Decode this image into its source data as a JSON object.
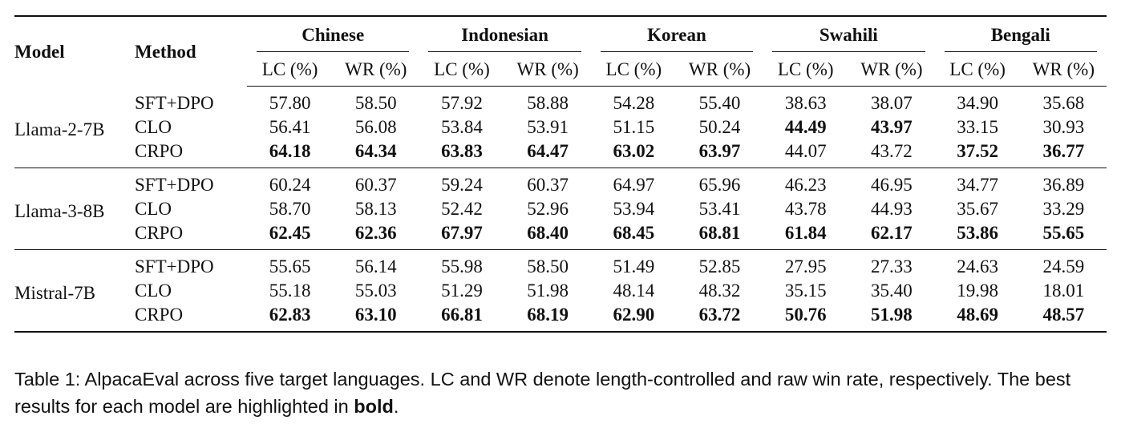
{
  "table": {
    "headers": {
      "model": "Model",
      "method": "Method",
      "languages": [
        "Chinese",
        "Indonesian",
        "Korean",
        "Swahili",
        "Bengali"
      ],
      "subheaders": [
        "LC (%)",
        "WR (%)"
      ]
    },
    "groups": [
      {
        "model": "Llama-2-7B",
        "rows": [
          {
            "method": "SFT+DPO",
            "values": [
              "57.80",
              "58.50",
              "57.92",
              "58.88",
              "54.28",
              "55.40",
              "38.63",
              "38.07",
              "34.90",
              "35.68"
            ],
            "bold": [
              false,
              false,
              false,
              false,
              false,
              false,
              false,
              false,
              false,
              false
            ]
          },
          {
            "method": "CLO",
            "values": [
              "56.41",
              "56.08",
              "53.84",
              "53.91",
              "51.15",
              "50.24",
              "44.49",
              "43.97",
              "33.15",
              "30.93"
            ],
            "bold": [
              false,
              false,
              false,
              false,
              false,
              false,
              true,
              true,
              false,
              false
            ]
          },
          {
            "method": "CRPO",
            "values": [
              "64.18",
              "64.34",
              "63.83",
              "64.47",
              "63.02",
              "63.97",
              "44.07",
              "43.72",
              "37.52",
              "36.77"
            ],
            "bold": [
              true,
              true,
              true,
              true,
              true,
              true,
              false,
              false,
              true,
              true
            ]
          }
        ]
      },
      {
        "model": "Llama-3-8B",
        "rows": [
          {
            "method": "SFT+DPO",
            "values": [
              "60.24",
              "60.37",
              "59.24",
              "60.37",
              "64.97",
              "65.96",
              "46.23",
              "46.95",
              "34.77",
              "36.89"
            ],
            "bold": [
              false,
              false,
              false,
              false,
              false,
              false,
              false,
              false,
              false,
              false
            ]
          },
          {
            "method": "CLO",
            "values": [
              "58.70",
              "58.13",
              "52.42",
              "52.96",
              "53.94",
              "53.41",
              "43.78",
              "44.93",
              "35.67",
              "33.29"
            ],
            "bold": [
              false,
              false,
              false,
              false,
              false,
              false,
              false,
              false,
              false,
              false
            ]
          },
          {
            "method": "CRPO",
            "values": [
              "62.45",
              "62.36",
              "67.97",
              "68.40",
              "68.45",
              "68.81",
              "61.84",
              "62.17",
              "53.86",
              "55.65"
            ],
            "bold": [
              true,
              true,
              true,
              true,
              true,
              true,
              true,
              true,
              true,
              true
            ]
          }
        ]
      },
      {
        "model": "Mistral-7B",
        "rows": [
          {
            "method": "SFT+DPO",
            "values": [
              "55.65",
              "56.14",
              "55.98",
              "58.50",
              "51.49",
              "52.85",
              "27.95",
              "27.33",
              "24.63",
              "24.59"
            ],
            "bold": [
              false,
              false,
              false,
              false,
              false,
              false,
              false,
              false,
              false,
              false
            ]
          },
          {
            "method": "CLO",
            "values": [
              "55.18",
              "55.03",
              "51.29",
              "51.98",
              "48.14",
              "48.32",
              "35.15",
              "35.40",
              "19.98",
              "18.01"
            ],
            "bold": [
              false,
              false,
              false,
              false,
              false,
              false,
              false,
              false,
              false,
              false
            ]
          },
          {
            "method": "CRPO",
            "values": [
              "62.83",
              "63.10",
              "66.81",
              "68.19",
              "62.90",
              "63.72",
              "50.76",
              "51.98",
              "48.69",
              "48.57"
            ],
            "bold": [
              true,
              true,
              true,
              true,
              true,
              true,
              true,
              true,
              true,
              true
            ]
          }
        ]
      }
    ]
  },
  "caption": {
    "text_before_bold": "Table 1: AlpacaEval across five target languages. LC and WR denote length-controlled and raw win rate, respectively. The best results for each model are highlighted in ",
    "bold_word": "bold",
    "text_after_bold": "."
  }
}
